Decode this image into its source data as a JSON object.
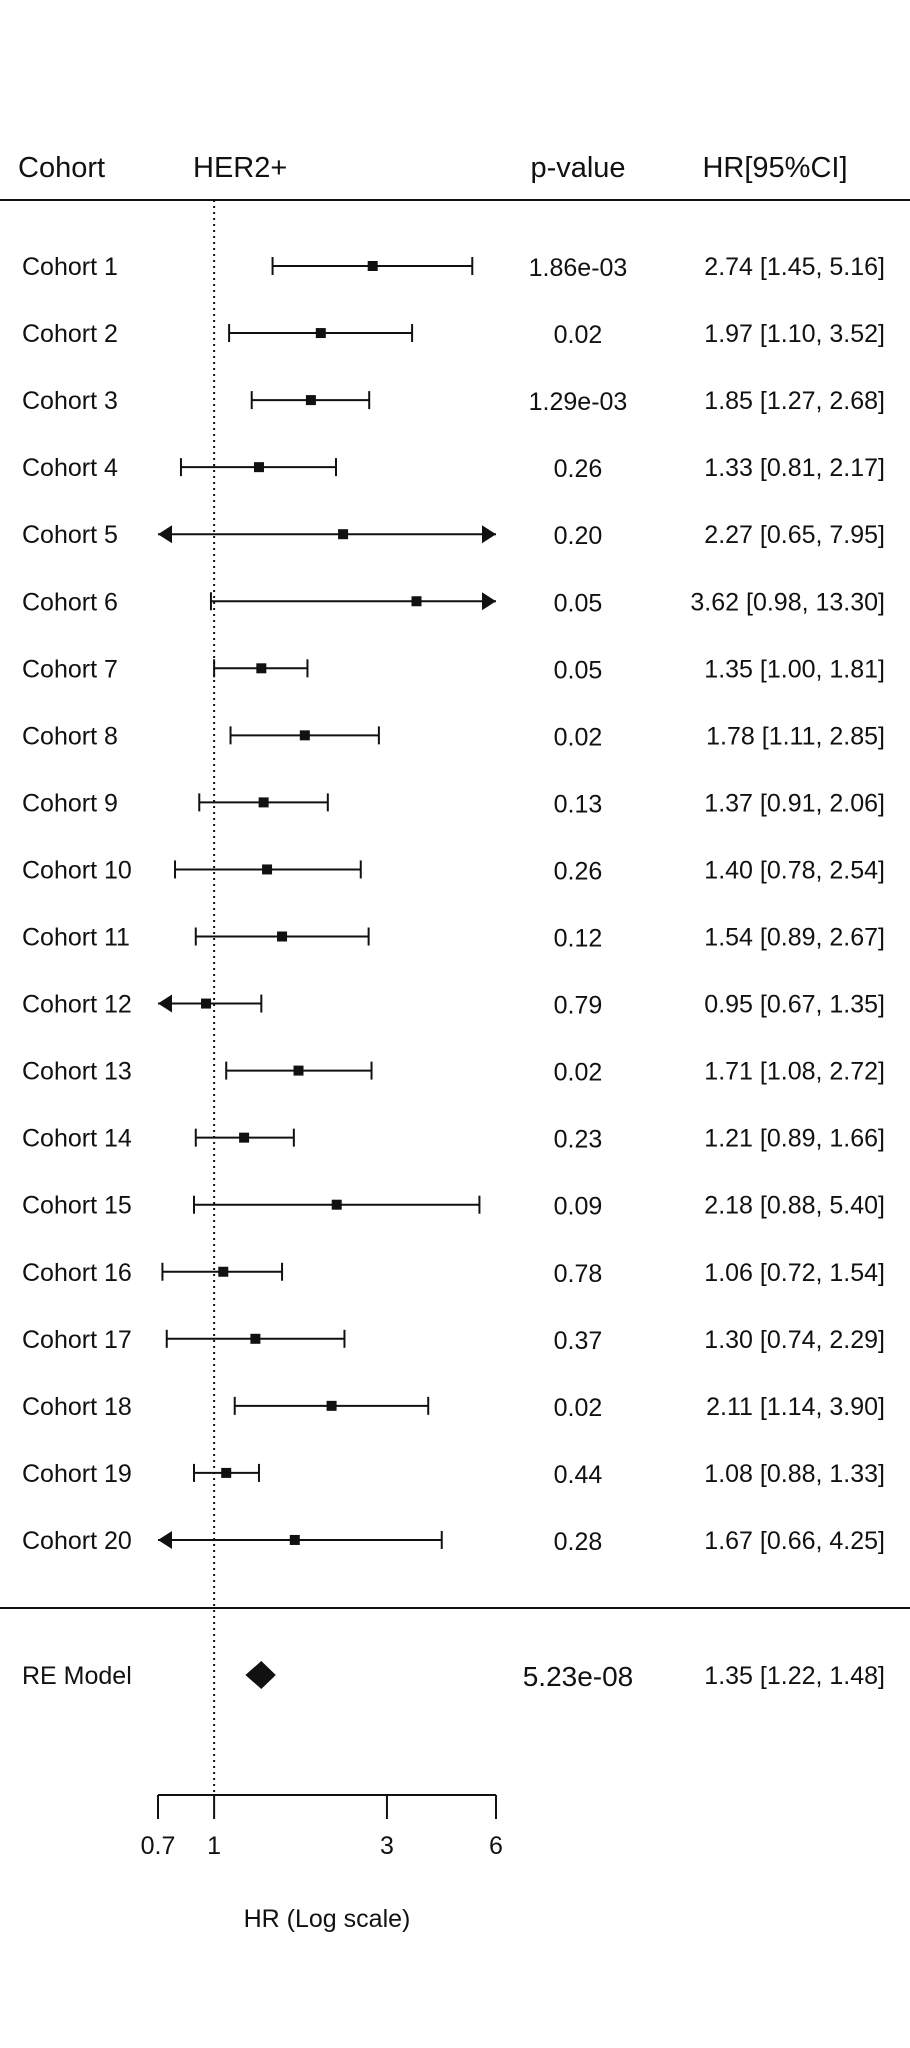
{
  "chart_data": {
    "type": "forest",
    "headers": {
      "study": "Cohort",
      "group": "HER2+",
      "pvalue": "p-value",
      "estimate": "HR[95%CI]"
    },
    "xlabel": "HR (Log scale)",
    "scale": "log",
    "xlim": [
      0.7,
      6
    ],
    "xticks": [
      0.7,
      1,
      3,
      6
    ],
    "xtick_labels": [
      "0.7",
      "1",
      "3",
      "6"
    ],
    "reference_line": 1,
    "arrow_limit_low": 0.7,
    "arrow_limit_high": 6,
    "studies": [
      {
        "name": "Cohort 1",
        "hr": 2.74,
        "lo": 1.45,
        "hi": 5.16,
        "p": "1.86e-03",
        "ci_text": "2.74 [1.45,  5.16]"
      },
      {
        "name": "Cohort 2",
        "hr": 1.97,
        "lo": 1.1,
        "hi": 3.52,
        "p": "0.02",
        "ci_text": "1.97 [1.10,  3.52]"
      },
      {
        "name": "Cohort 3",
        "hr": 1.85,
        "lo": 1.27,
        "hi": 2.68,
        "p": "1.29e-03",
        "ci_text": "1.85 [1.27,  2.68]"
      },
      {
        "name": "Cohort 4",
        "hr": 1.33,
        "lo": 0.81,
        "hi": 2.17,
        "p": "0.26",
        "ci_text": "1.33 [0.81,  2.17]"
      },
      {
        "name": "Cohort 5",
        "hr": 2.27,
        "lo": 0.65,
        "hi": 7.95,
        "p": "0.20",
        "ci_text": "2.27 [0.65,  7.95]"
      },
      {
        "name": "Cohort 6",
        "hr": 3.62,
        "lo": 0.98,
        "hi": 13.3,
        "p": "0.05",
        "ci_text": "3.62 [0.98, 13.30]"
      },
      {
        "name": "Cohort 7",
        "hr": 1.35,
        "lo": 1.0,
        "hi": 1.81,
        "p": "0.05",
        "ci_text": "1.35 [1.00,  1.81]"
      },
      {
        "name": "Cohort 8",
        "hr": 1.78,
        "lo": 1.11,
        "hi": 2.85,
        "p": "0.02",
        "ci_text": "1.78 [1.11,  2.85]"
      },
      {
        "name": "Cohort 9",
        "hr": 1.37,
        "lo": 0.91,
        "hi": 2.06,
        "p": "0.13",
        "ci_text": "1.37 [0.91,  2.06]"
      },
      {
        "name": "Cohort 10",
        "hr": 1.4,
        "lo": 0.78,
        "hi": 2.54,
        "p": "0.26",
        "ci_text": "1.40 [0.78,  2.54]"
      },
      {
        "name": "Cohort 11",
        "hr": 1.54,
        "lo": 0.89,
        "hi": 2.67,
        "p": "0.12",
        "ci_text": "1.54 [0.89,  2.67]"
      },
      {
        "name": "Cohort 12",
        "hr": 0.95,
        "lo": 0.67,
        "hi": 1.35,
        "p": "0.79",
        "ci_text": "0.95 [0.67,  1.35]"
      },
      {
        "name": "Cohort 13",
        "hr": 1.71,
        "lo": 1.08,
        "hi": 2.72,
        "p": "0.02",
        "ci_text": "1.71 [1.08,  2.72]"
      },
      {
        "name": "Cohort 14",
        "hr": 1.21,
        "lo": 0.89,
        "hi": 1.66,
        "p": "0.23",
        "ci_text": "1.21 [0.89,  1.66]"
      },
      {
        "name": "Cohort 15",
        "hr": 2.18,
        "lo": 0.88,
        "hi": 5.4,
        "p": "0.09",
        "ci_text": "2.18 [0.88,  5.40]"
      },
      {
        "name": "Cohort 16",
        "hr": 1.06,
        "lo": 0.72,
        "hi": 1.54,
        "p": "0.78",
        "ci_text": "1.06 [0.72,  1.54]"
      },
      {
        "name": "Cohort 17",
        "hr": 1.3,
        "lo": 0.74,
        "hi": 2.29,
        "p": "0.37",
        "ci_text": "1.30 [0.74,  2.29]"
      },
      {
        "name": "Cohort 18",
        "hr": 2.11,
        "lo": 1.14,
        "hi": 3.9,
        "p": "0.02",
        "ci_text": "2.11 [1.14,  3.90]"
      },
      {
        "name": "Cohort 19",
        "hr": 1.08,
        "lo": 0.88,
        "hi": 1.33,
        "p": "0.44",
        "ci_text": "1.08 [0.88,  1.33]"
      },
      {
        "name": "Cohort 20",
        "hr": 1.67,
        "lo": 0.66,
        "hi": 4.25,
        "p": "0.28",
        "ci_text": "1.67 [0.66,  4.25]"
      }
    ],
    "summary": {
      "name": "RE Model",
      "hr": 1.35,
      "lo": 1.22,
      "hi": 1.48,
      "p": "5.23e-08",
      "ci_text": "1.35 [1.22,  1.48]"
    }
  }
}
